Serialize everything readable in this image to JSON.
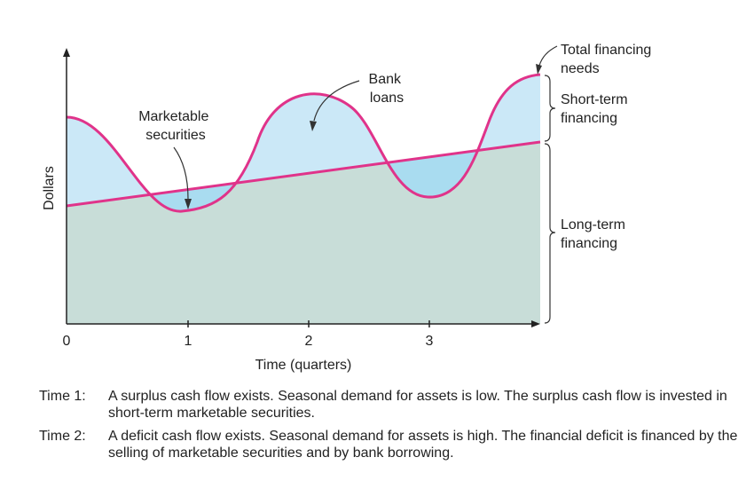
{
  "figure": {
    "y_axis_label": "Dollars",
    "x_axis_label": "Time (quarters)",
    "x_ticks": [
      "0",
      "1",
      "2",
      "3"
    ],
    "callouts": {
      "marketable_securities": [
        "Marketable",
        "securities"
      ],
      "bank_loans": [
        "Bank",
        "loans"
      ],
      "total_financing_needs": [
        "Total financing",
        "needs"
      ],
      "short_term_financing": [
        "Short-term",
        "financing"
      ],
      "long_term_financing": [
        "Long-term",
        "financing"
      ]
    },
    "colors": {
      "long_term_fill": "#c8ddd8",
      "short_term_fill": "#cbe8f7",
      "securities_fill": "#a9dcf0",
      "curve": "#e0338a",
      "axis": "#222222"
    }
  },
  "captions": [
    {
      "label": "Time 1:",
      "text": "A surplus cash flow exists. Seasonal demand for assets is low. The surplus cash flow is invested in short-term marketable securities."
    },
    {
      "label": "Time 2:",
      "text": "A deficit cash flow exists. Seasonal demand for assets is high. The financial deficit is financed by the selling of marketable securities and by bank borrowing."
    }
  ]
}
